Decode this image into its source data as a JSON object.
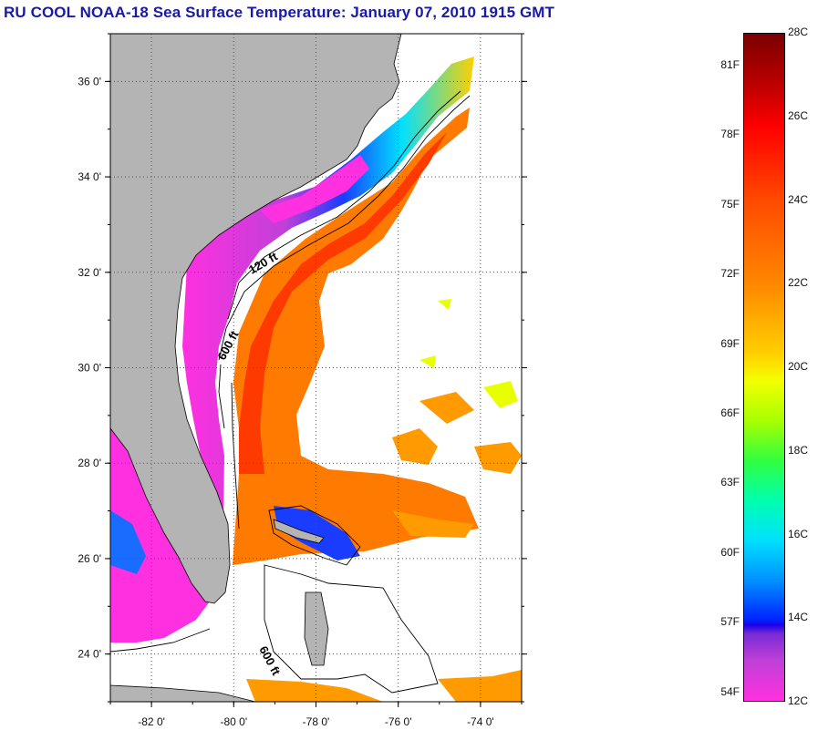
{
  "title": "RU COOL  NOAA-18  Sea Surface Temperature:  January 07, 2010 1915 GMT",
  "map": {
    "lon_range": [
      -83,
      -73
    ],
    "lat_range": [
      23,
      37
    ],
    "lat_labels": [
      "24 0'",
      "26 0'",
      "28 0'",
      "30 0'",
      "32 0'",
      "34 0'",
      "36 0'"
    ],
    "lat_values": [
      24,
      26,
      28,
      30,
      32,
      34,
      36
    ],
    "lon_labels": [
      "-82 0'",
      "-80 0'",
      "-78 0'",
      "-76 0'",
      "-74 0'"
    ],
    "lon_values": [
      -82,
      -80,
      -78,
      -76,
      -74
    ],
    "contour_labels": [
      "120 ft",
      "600 ft",
      "600 ft"
    ],
    "colors": {
      "land": "#b4b4b4",
      "ocean_nodata": "#ffffff",
      "grid": "#555555"
    }
  },
  "colorbar": {
    "celsius": [
      {
        "label": "28C",
        "value": 28
      },
      {
        "label": "26C",
        "value": 26
      },
      {
        "label": "24C",
        "value": 24
      },
      {
        "label": "22C",
        "value": 22
      },
      {
        "label": "20C",
        "value": 20
      },
      {
        "label": "18C",
        "value": 18
      },
      {
        "label": "16C",
        "value": 16
      },
      {
        "label": "14C",
        "value": 14
      },
      {
        "label": "12C",
        "value": 12
      }
    ],
    "fahrenheit": [
      {
        "label": "81F",
        "value": 81
      },
      {
        "label": "78F",
        "value": 78
      },
      {
        "label": "75F",
        "value": 75
      },
      {
        "label": "72F",
        "value": 72
      },
      {
        "label": "69F",
        "value": 69
      },
      {
        "label": "66F",
        "value": 66
      },
      {
        "label": "63F",
        "value": 63
      },
      {
        "label": "60F",
        "value": 60
      },
      {
        "label": "57F",
        "value": 57
      },
      {
        "label": "54F",
        "value": 54
      }
    ],
    "range_c": [
      12,
      28
    ]
  }
}
